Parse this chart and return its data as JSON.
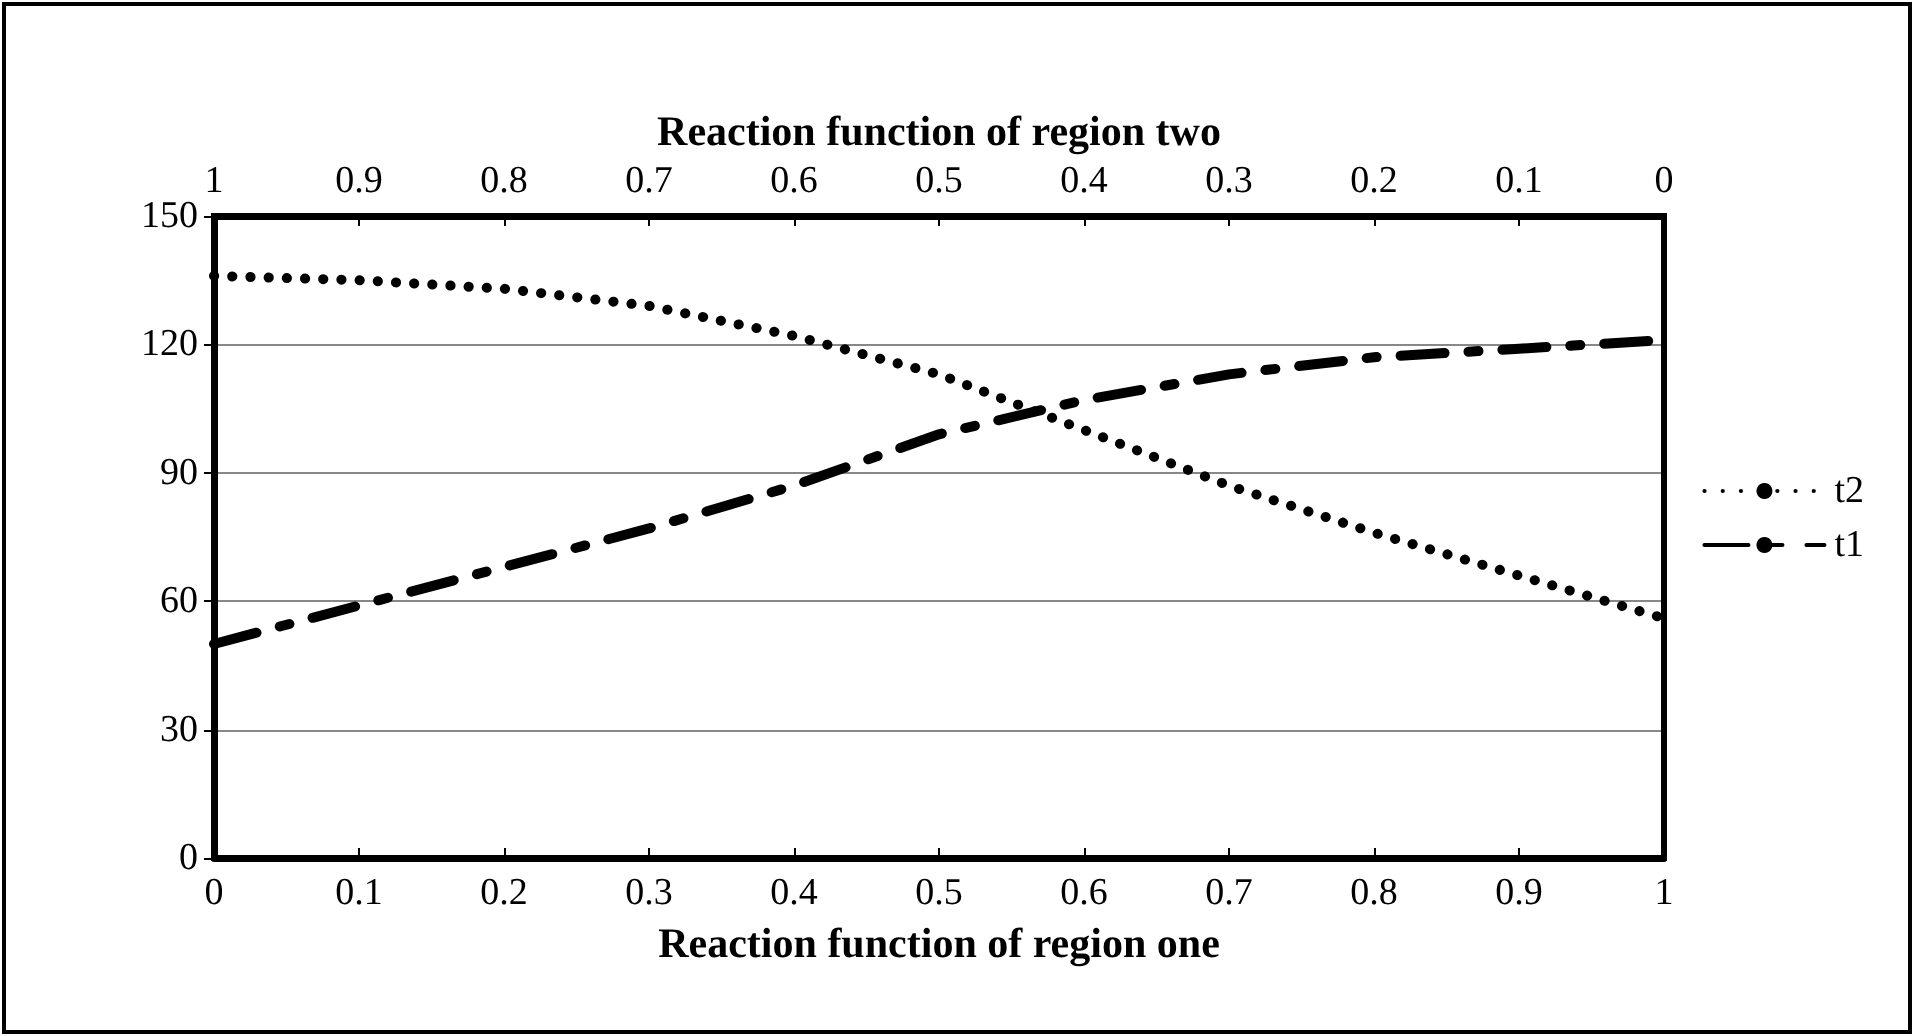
{
  "chart_data": {
    "type": "line",
    "xlabel": "Reaction function of region one",
    "x2label": "Reaction function of region two",
    "x": [
      0,
      0.1,
      0.2,
      0.3,
      0.4,
      0.5,
      0.6,
      0.7,
      0.8,
      0.9,
      1
    ],
    "series": [
      {
        "name": "t2",
        "color": "#000000",
        "line_style": "dotted",
        "values": [
          136,
          135,
          133,
          129,
          122,
          113,
          100,
          87,
          76,
          66,
          56
        ]
      },
      {
        "name": "t1",
        "color": "#000000",
        "line_style": "dashed",
        "values": [
          50,
          59,
          68,
          77,
          87,
          99,
          107,
          113,
          117,
          119,
          121
        ]
      }
    ],
    "xlim": [
      0,
      1
    ],
    "xticks": [
      0,
      0.1,
      0.2,
      0.3,
      0.4,
      0.5,
      0.6,
      0.7,
      0.8,
      0.9,
      1
    ],
    "x2lim": [
      1,
      0
    ],
    "x2ticks": [
      1,
      0.9,
      0.8,
      0.7,
      0.6,
      0.5,
      0.4,
      0.3,
      0.2,
      0.1,
      0
    ],
    "ylim": [
      0,
      150
    ],
    "yticks": [
      0,
      30,
      60,
      90,
      120,
      150
    ],
    "grid": "y",
    "legend": "right",
    "marker": "none"
  }
}
